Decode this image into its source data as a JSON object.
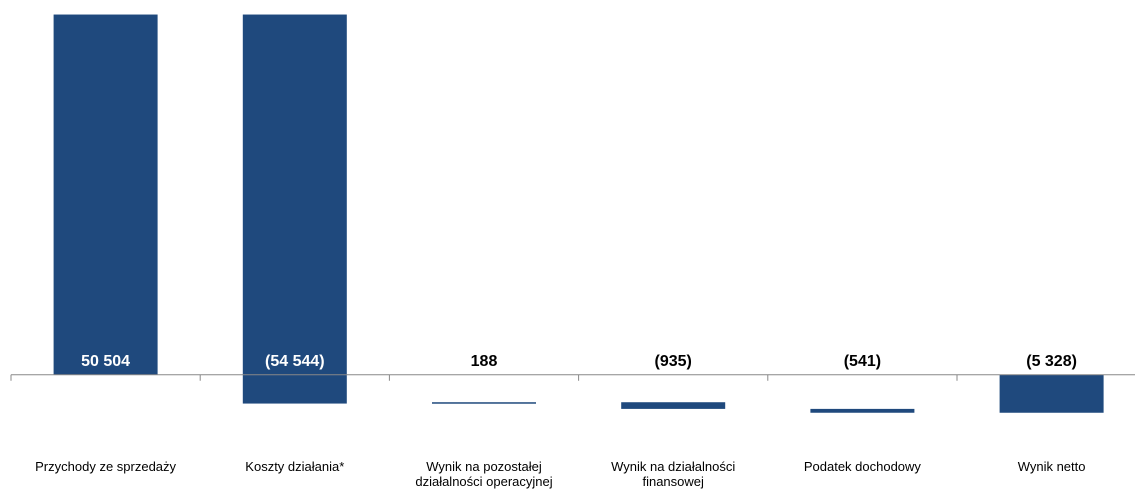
{
  "chart_data": {
    "type": "waterfall",
    "categories": [
      "Przychody ze sprzedaży",
      "Koszty działania*",
      "Wynik na pozostałej działalności operacyjnej",
      "Wynik na działalności finansowej",
      "Podatek dochodowy",
      "Wynik netto"
    ],
    "values": [
      50504,
      -54544,
      188,
      -935,
      -541,
      -5328
    ],
    "value_labels": [
      "50 504",
      "(54 544)",
      "188",
      "(935)",
      "(541)",
      "(5 328)"
    ],
    "totals": [
      false,
      false,
      false,
      false,
      false,
      true
    ],
    "color": "#1f497d",
    "ylim": [
      -17000,
      51000
    ]
  }
}
